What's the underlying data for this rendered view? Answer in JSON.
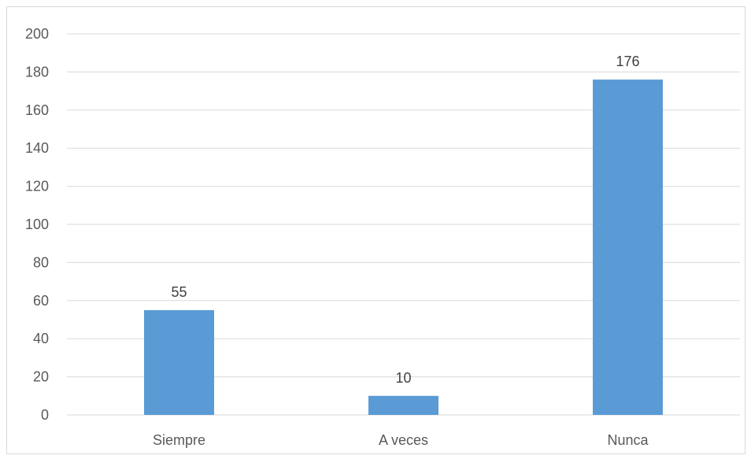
{
  "chart_data": {
    "type": "bar",
    "title": "",
    "xlabel": "",
    "ylabel": "",
    "categories": [
      "Siempre",
      "A veces",
      "Nunca"
    ],
    "values": [
      55,
      10,
      176
    ],
    "data_labels": [
      "55",
      "10",
      "176"
    ],
    "ylim": [
      0,
      200
    ],
    "yticks": [
      0,
      20,
      40,
      60,
      80,
      100,
      120,
      140,
      160,
      180,
      200
    ],
    "grid": true,
    "legend": "none",
    "colors": {
      "bar": "#5b9bd5",
      "grid": "#d9d9d9",
      "axis_text": "#595959",
      "label_text": "#404040"
    }
  }
}
